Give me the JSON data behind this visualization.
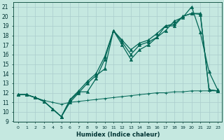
{
  "xlabel": "Humidex (Indice chaleur)",
  "ylabel": "",
  "xlim": [
    -0.5,
    23.5
  ],
  "ylim": [
    9,
    21.5
  ],
  "xticks": [
    0,
    1,
    2,
    3,
    4,
    5,
    6,
    7,
    8,
    9,
    10,
    11,
    12,
    13,
    14,
    15,
    16,
    17,
    18,
    19,
    20,
    21,
    22,
    23
  ],
  "yticks": [
    9,
    10,
    11,
    12,
    13,
    14,
    15,
    16,
    17,
    18,
    19,
    20,
    21
  ],
  "bg_color": "#c5e8e0",
  "grid_color": "#aacccc",
  "line_color": "#006655",
  "line1_x": [
    0,
    1,
    2,
    3,
    4,
    5,
    6,
    7,
    8,
    9,
    10,
    11,
    12,
    13,
    14,
    15,
    16,
    17,
    18,
    19,
    20,
    21,
    22,
    23
  ],
  "line1_y": [
    11.8,
    11.8,
    11.5,
    11.1,
    10.3,
    9.5,
    11.0,
    12.0,
    13.0,
    13.8,
    14.5,
    18.5,
    17.0,
    15.5,
    16.5,
    17.0,
    17.8,
    18.5,
    19.5,
    19.9,
    21.0,
    18.3,
    14.2,
    12.3
  ],
  "line2_x": [
    0,
    1,
    2,
    3,
    4,
    5,
    6,
    7,
    8,
    9,
    10,
    11,
    12,
    13,
    14,
    15,
    16,
    17,
    18,
    19,
    20,
    21,
    22,
    23
  ],
  "line2_y": [
    11.8,
    11.8,
    11.5,
    11.1,
    10.3,
    9.5,
    11.3,
    12.2,
    13.2,
    14.0,
    15.8,
    18.5,
    17.5,
    16.5,
    17.2,
    17.5,
    18.2,
    19.0,
    19.2,
    20.0,
    20.3,
    20.2,
    12.3,
    12.2
  ],
  "line3_x": [
    0,
    1,
    2,
    3,
    4,
    5,
    6,
    7,
    8,
    9,
    10,
    11,
    12,
    13,
    14,
    15,
    16,
    17,
    18,
    19,
    20,
    21,
    22,
    23
  ],
  "line3_y": [
    11.8,
    11.8,
    11.5,
    11.1,
    10.3,
    9.5,
    11.2,
    12.1,
    12.1,
    13.5,
    15.5,
    18.5,
    17.3,
    16.0,
    17.0,
    17.3,
    17.8,
    19.0,
    19.0,
    20.0,
    20.3,
    20.3,
    12.3,
    12.2
  ],
  "flat_x": [
    0,
    1,
    2,
    3,
    4,
    5,
    6,
    7,
    8,
    9,
    10,
    11,
    12,
    13,
    14,
    15,
    16,
    17,
    18,
    19,
    20,
    21,
    22,
    23
  ],
  "flat_y": [
    11.8,
    11.8,
    11.5,
    11.2,
    11.0,
    10.8,
    11.0,
    11.1,
    11.2,
    11.3,
    11.4,
    11.5,
    11.6,
    11.7,
    11.8,
    11.9,
    12.0,
    12.0,
    12.1,
    12.1,
    12.2,
    12.2,
    12.2,
    12.2
  ]
}
